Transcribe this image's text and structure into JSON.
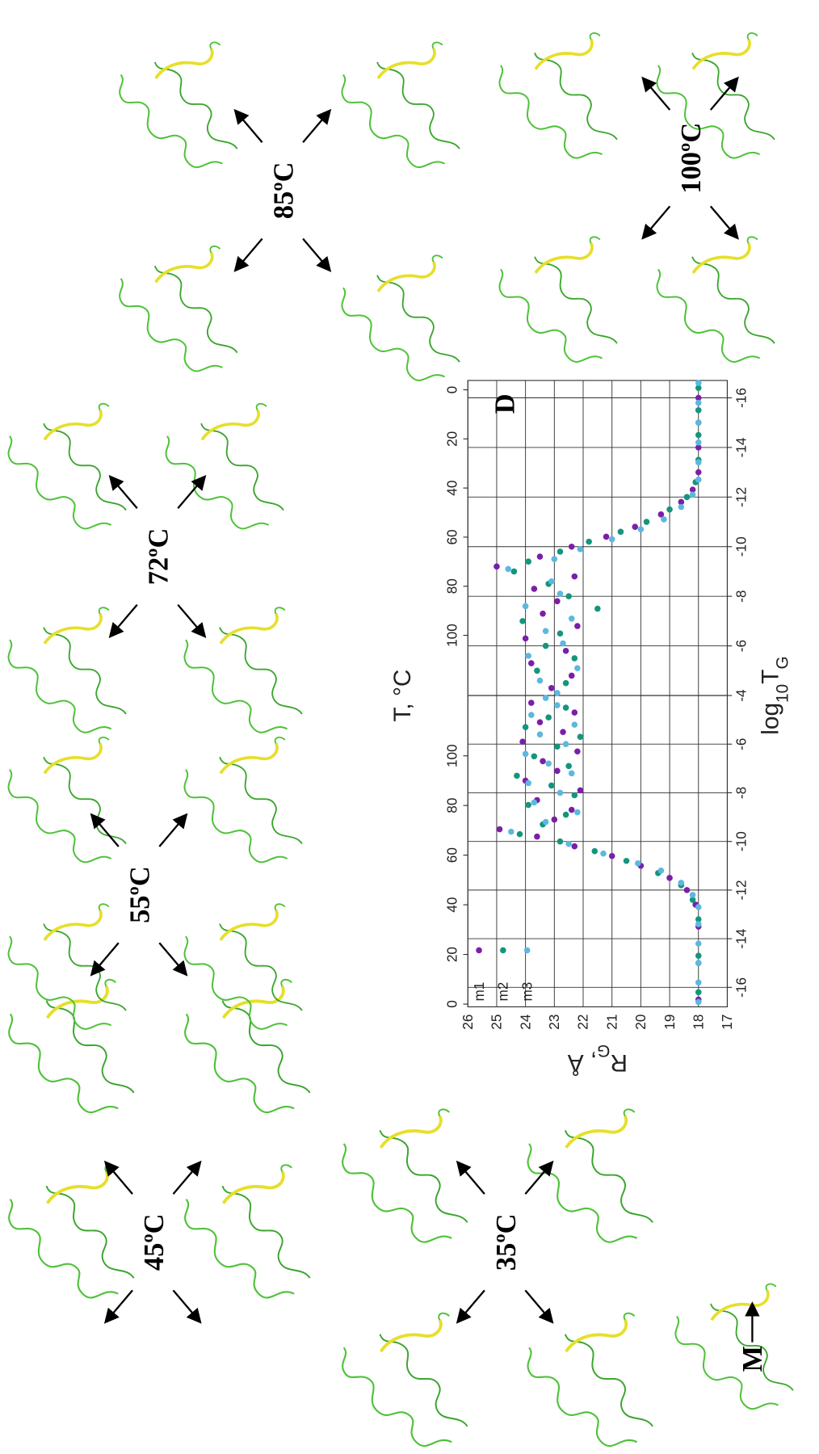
{
  "chart_data": {
    "type": "scatter",
    "x_label": [
      "log",
      "10",
      "T",
      "G"
    ],
    "x2_label": "T, °C",
    "y_label": [
      "R",
      "G",
      ", Å"
    ],
    "panel_label": "D",
    "ylim": [
      26,
      17
    ],
    "yticks": [
      26,
      25,
      24,
      23,
      22,
      21,
      20,
      19,
      18,
      17
    ],
    "grid": true,
    "legend": "upper left",
    "series": [
      {
        "name": "m1",
        "color": "#7a1fa8"
      },
      {
        "name": "m2",
        "color": "#14957d"
      },
      {
        "name": "m3",
        "color": "#5cb8de"
      }
    ],
    "panels": [
      {
        "xlim": [
          -16.8,
          -4
        ],
        "xticks": [
          -16,
          -14,
          -12,
          -10,
          -8,
          -6,
          -4
        ],
        "x2lim": [
          -1.1,
          124.3
        ],
        "x2ticks": [
          0,
          20,
          40,
          60,
          80,
          100
        ],
        "series": [
          {
            "x": [
              -16.5,
              -15,
              -13.5,
              -12.6,
              -12.0,
              -11.5,
              -11.0,
              -10.6,
              -10.2,
              -9.8,
              -9.5,
              -9.1,
              -8.7,
              -8.3,
              -7.9,
              -7.5,
              -7.1,
              -6.7,
              -6.3,
              -5.9,
              -5.5,
              -5.1,
              -4.7,
              -4.3
            ],
            "values": [
              18,
              18,
              18,
              18.1,
              18.4,
              19.0,
              20.0,
              21.0,
              22.3,
              23.6,
              24.9,
              23.0,
              22.4,
              23.6,
              22.1,
              24.0,
              22.9,
              23.4,
              22.2,
              24.1,
              22.7,
              23.5,
              22.3,
              23.8
            ]
          },
          {
            "x": [
              -16.2,
              -14.7,
              -13.2,
              -12.4,
              -11.8,
              -11.3,
              -10.8,
              -10.4,
              -10.0,
              -9.7,
              -9.3,
              -8.9,
              -8.5,
              -8.1,
              -7.7,
              -7.3,
              -6.9,
              -6.5,
              -6.1,
              -5.7,
              -5.3,
              -4.9,
              -4.5
            ],
            "values": [
              18,
              18,
              18,
              18.2,
              18.6,
              19.4,
              20.5,
              21.6,
              22.8,
              24.2,
              23.4,
              22.6,
              23.9,
              22.3,
              23.1,
              24.3,
              22.5,
              23.7,
              22.9,
              22.1,
              24.0,
              23.2,
              22.6
            ]
          },
          {
            "x": [
              -16.6,
              -15.8,
              -15,
              -14.2,
              -13.4,
              -12.7,
              -12.2,
              -11.7,
              -11.2,
              -10.9,
              -10.5,
              -10.1,
              -9.6,
              -9.2,
              -8.8,
              -8.4,
              -8.0,
              -7.6,
              -7.2,
              -6.8,
              -6.4,
              -6.0,
              -5.6,
              -5.2,
              -4.8,
              -4.4,
              -4.1
            ],
            "values": [
              18,
              18,
              18,
              18,
              18,
              18.0,
              18.2,
              18.6,
              19.3,
              20.1,
              21.3,
              22.5,
              24.5,
              23.3,
              22.2,
              23.7,
              22.8,
              23.9,
              22.4,
              23.2,
              24.0,
              22.6,
              23.5,
              22.3,
              23.8,
              22.9,
              23.3
            ]
          }
        ]
      },
      {
        "xlim": [
          -4,
          -16.7
        ],
        "xticks": [
          -6,
          -8,
          -10,
          -12,
          -14,
          -16
        ],
        "x2lim": [
          124.5,
          -3.8
        ],
        "x2ticks": [
          100,
          80,
          60,
          40,
          20,
          0
        ],
        "series": [
          {
            "x": [
              -4.3,
              -4.8,
              -5.3,
              -5.8,
              -6.3,
              -6.8,
              -7.3,
              -7.8,
              -8.3,
              -8.8,
              -9.2,
              -9.6,
              -10.0,
              -10.4,
              -10.8,
              -11.3,
              -11.8,
              -12.3,
              -13.0,
              -14.0,
              -15.0,
              -16.0
            ],
            "values": [
              23.1,
              22.4,
              23.8,
              22.6,
              24.0,
              22.2,
              23.4,
              22.9,
              23.7,
              22.3,
              25.0,
              23.5,
              22.4,
              21.2,
              20.2,
              19.3,
              18.6,
              18.2,
              18,
              18,
              18,
              18
            ]
          },
          {
            "x": [
              -4.5,
              -5.0,
              -5.5,
              -6.0,
              -6.5,
              -7.0,
              -7.5,
              -8.0,
              -8.5,
              -9.0,
              -9.4,
              -9.8,
              -10.2,
              -10.6,
              -11.0,
              -11.5,
              -12.0,
              -12.6,
              -13.5,
              -14.5,
              -15.5,
              -16.4
            ],
            "values": [
              22.6,
              23.6,
              22.3,
              23.3,
              22.8,
              24.1,
              21.5,
              22.5,
              23.2,
              24.4,
              23.9,
              22.8,
              21.8,
              20.7,
              19.8,
              19.0,
              18.4,
              18.1,
              18,
              18,
              18,
              18
            ]
          },
          {
            "x": [
              -4.1,
              -4.6,
              -5.1,
              -5.6,
              -6.1,
              -6.6,
              -7.1,
              -7.6,
              -8.1,
              -8.6,
              -9.1,
              -9.5,
              -9.9,
              -10.3,
              -10.7,
              -11.1,
              -11.6,
              -12.1,
              -12.7,
              -13.4,
              -14.2,
              -15.0,
              -15.8,
              -16.6
            ],
            "values": [
              22.9,
              23.5,
              22.2,
              23.9,
              22.7,
              23.3,
              22.4,
              24.0,
              22.8,
              23.1,
              24.6,
              23.0,
              22.1,
              21.0,
              20.0,
              19.2,
              18.6,
              18.2,
              18,
              18,
              18,
              18,
              18,
              18
            ]
          }
        ]
      }
    ]
  },
  "temperature_labels": [
    "45ºC",
    "35ºC",
    "55ºC",
    "72ºC",
    "85ºC",
    "100ºC"
  ],
  "start_label": "M"
}
